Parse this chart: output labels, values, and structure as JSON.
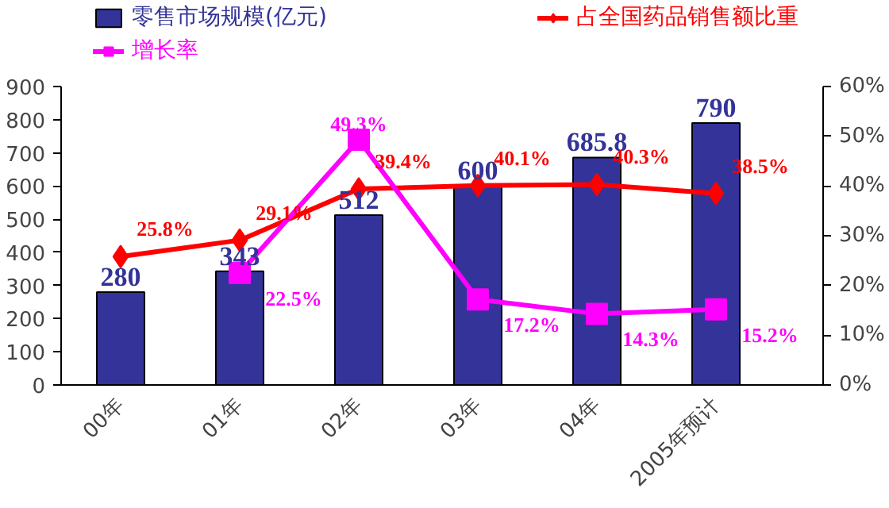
{
  "chart_data": {
    "type": "bar",
    "categories": [
      "00年",
      "01年",
      "02年",
      "03年",
      "04年",
      "2005年预计"
    ],
    "series": [
      {
        "name": "零售市场规模(亿元)",
        "color": "#333399",
        "values": [
          280,
          343,
          512,
          600,
          685.8,
          790
        ],
        "data_labels": true
      },
      {
        "name": "占全国药品销售额比重",
        "type": "line",
        "axis": "y2",
        "marker": "diamond",
        "color": "#ff0000",
        "values": [
          25.8,
          29.1,
          39.4,
          40.1,
          40.3,
          38.5
        ],
        "value_labels": [
          "25.8%",
          "29.1%",
          "39.4%",
          "40.1%",
          "40.3%",
          "38.5%"
        ]
      },
      {
        "name": "增长率",
        "type": "line",
        "axis": "y2",
        "marker": "square",
        "color": "#ff00ff",
        "values": [
          null,
          22.5,
          49.3,
          17.2,
          14.3,
          15.2
        ],
        "value_labels": [
          null,
          "22.5%",
          "49.3%",
          "17.2%",
          "14.3%",
          "15.2%"
        ]
      }
    ],
    "ylim": [
      0,
      900
    ],
    "yticks": [
      0,
      100,
      200,
      300,
      400,
      500,
      600,
      700,
      800,
      900
    ],
    "y2lim": [
      0,
      60
    ],
    "y2ticks": [
      {
        "value": 0,
        "label": "0%"
      },
      {
        "value": 10,
        "label": "10%"
      },
      {
        "value": 20,
        "label": "20%"
      },
      {
        "value": 30,
        "label": "30%"
      },
      {
        "value": 40,
        "label": "40%"
      },
      {
        "value": 50,
        "label": "50%"
      },
      {
        "value": 60,
        "label": "60%"
      }
    ],
    "grid": false,
    "legend": "top"
  }
}
